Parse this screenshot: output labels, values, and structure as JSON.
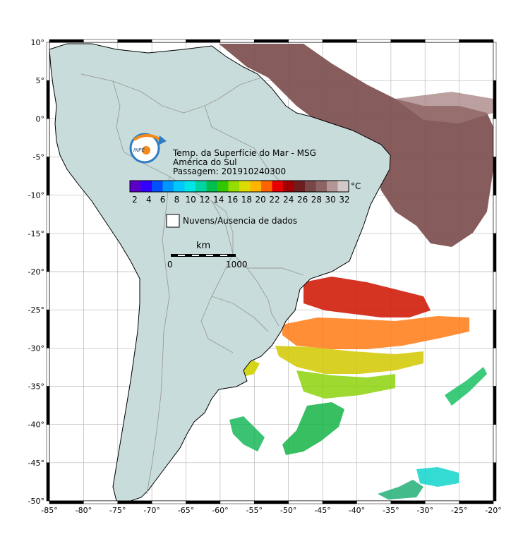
{
  "title": {
    "line1": "Temp. da Superfície do Mar - MSG",
    "line2": "América do Sul",
    "line3": "Passagem: 201910240300"
  },
  "logo": {
    "text": "INPE",
    "icon": "inpe-logo"
  },
  "colorbar": {
    "unit": "°C",
    "ticks": [
      "2",
      "4",
      "6",
      "8",
      "10",
      "12",
      "14",
      "16",
      "18",
      "20",
      "22",
      "24",
      "26",
      "28",
      "30",
      "32"
    ],
    "colors": [
      "#5a00c8",
      "#3200ff",
      "#0050ff",
      "#0096ff",
      "#00c8ff",
      "#00e6e6",
      "#00d2a0",
      "#00be50",
      "#32c800",
      "#96dc00",
      "#dcdc00",
      "#ffb400",
      "#ff6400",
      "#e60000",
      "#a00000",
      "#6e1e1e",
      "#784646",
      "#8c6464",
      "#b49696",
      "#d2c8c8"
    ]
  },
  "legend": {
    "no_data_label": "Nuvens/Ausencia de dados"
  },
  "scale_bar": {
    "unit": "km",
    "start_label": "0",
    "end_label": "1000"
  },
  "axes": {
    "lon_ticks": [
      "-85°",
      "-80°",
      "-75°",
      "-70°",
      "-65°",
      "-60°",
      "-55°",
      "-50°",
      "-45°",
      "-40°",
      "-35°",
      "-30°",
      "-25°",
      "-20°"
    ],
    "lat_ticks": [
      "10°",
      "5°",
      "0°",
      "-5°",
      "-10°",
      "-15°",
      "-20°",
      "-25°",
      "-30°",
      "-35°",
      "-40°",
      "-45°",
      "-50°"
    ],
    "lon_range": [
      -85,
      -20
    ],
    "lat_range": [
      -50,
      10
    ]
  },
  "colors": {
    "land": "#c9dcdc",
    "ocean": "#ffffff",
    "border": "#9a9a9a",
    "frame": "#000000"
  }
}
